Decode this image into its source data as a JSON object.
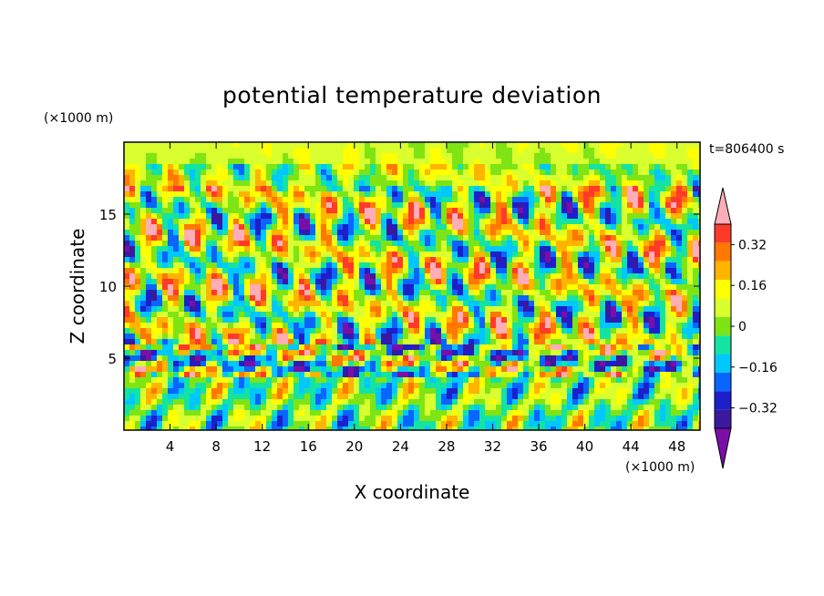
{
  "chart_data": {
    "type": "heatmap",
    "title": "potential temperature deviation",
    "xlabel": "X coordinate",
    "ylabel": "Z coordinate",
    "x_unit": "(×1000 m)",
    "z_unit": "(×1000 m)",
    "time_label": "t=806400 s",
    "xlim": [
      0,
      50
    ],
    "ylim": [
      0,
      20
    ],
    "x_ticks": [
      4,
      8,
      12,
      16,
      20,
      24,
      28,
      32,
      36,
      40,
      44,
      48
    ],
    "y_ticks": [
      5,
      10,
      15
    ],
    "colorbar": {
      "levels": [
        -0.48,
        -0.4,
        -0.32,
        -0.24,
        -0.16,
        -0.08,
        0,
        0.08,
        0.16,
        0.24,
        0.32,
        0.4,
        0.48
      ],
      "colors": [
        "#7a0fa8",
        "#3c189e",
        "#1d1fcb",
        "#0a64ff",
        "#00c8ff",
        "#14e3a2",
        "#7fe414",
        "#d9ff2e",
        "#ffff00",
        "#ffb400",
        "#ff7800",
        "#ff3a2a",
        "#ffadb7"
      ],
      "tick_labels": [
        "0.32",
        "0.16",
        "0",
        "−0.16",
        "−0.32"
      ],
      "tick_values": [
        0.32,
        0.16,
        0,
        -0.16,
        -0.32
      ]
    }
  }
}
